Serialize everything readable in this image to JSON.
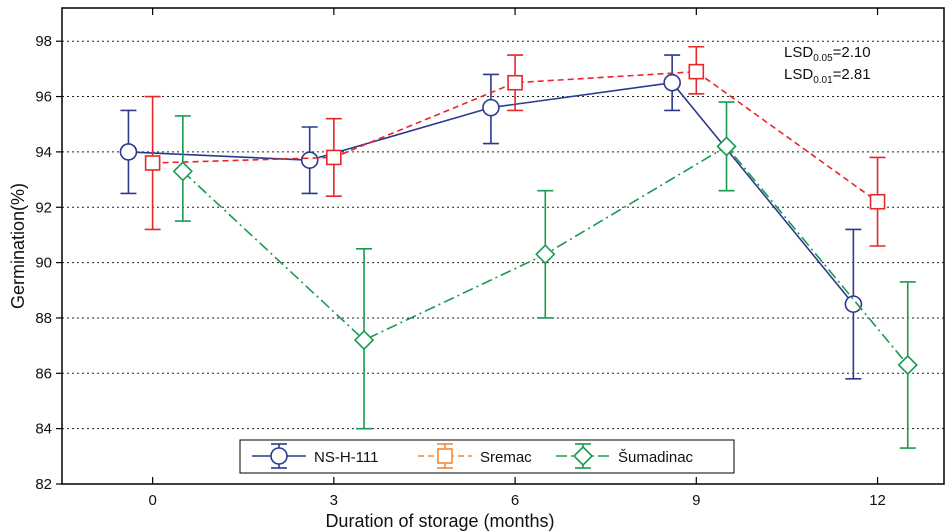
{
  "chart_data": {
    "type": "line",
    "xlabel": "Duration of storage (months)",
    "ylabel": "Germination(%)",
    "xlim": [
      -1.5,
      13.1
    ],
    "ylim": [
      82,
      99.2
    ],
    "x_ticks": [
      "0",
      "3",
      "6",
      "9",
      "12"
    ],
    "y_ticks": [
      "82",
      "84",
      "86",
      "88",
      "90",
      "92",
      "94",
      "96",
      "98"
    ],
    "grid": "horizontal dotted",
    "legend_position": "bottom-center",
    "series": [
      {
        "name": "NS-H-111",
        "color": "#2b3a8f",
        "line_style": "solid",
        "marker": "circle",
        "x": [
          -0.4,
          2.6,
          5.6,
          8.6,
          11.6
        ],
        "y": [
          94.0,
          93.7,
          95.6,
          96.5,
          88.5
        ],
        "err_low": [
          92.5,
          92.5,
          94.3,
          95.5,
          85.8
        ],
        "err_high": [
          95.5,
          94.9,
          96.8,
          97.5,
          91.2
        ]
      },
      {
        "name": "Sremac",
        "color": "#e8262b",
        "legend_color": "#f08a3c",
        "line_style": "dashed",
        "marker": "square",
        "x": [
          0.0,
          3.0,
          6.0,
          9.0,
          12.0
        ],
        "y": [
          93.6,
          93.8,
          96.5,
          96.9,
          92.2
        ],
        "err_low": [
          91.2,
          92.4,
          95.5,
          96.1,
          90.6
        ],
        "err_high": [
          96.0,
          95.2,
          97.5,
          97.8,
          93.8
        ]
      },
      {
        "name": "Šumadinac",
        "color": "#1a9a50",
        "line_style": "dash-dot",
        "marker": "diamond",
        "x": [
          0.5,
          3.5,
          6.5,
          9.5,
          12.5
        ],
        "y": [
          93.3,
          87.2,
          90.3,
          94.2,
          86.3
        ],
        "err_low": [
          91.5,
          84.0,
          88.0,
          92.6,
          83.3
        ],
        "err_high": [
          95.3,
          90.5,
          92.6,
          95.8,
          89.3
        ]
      }
    ],
    "annotations": [
      {
        "prefix": "LSD",
        "sub": "0.05",
        "text": "=2.10"
      },
      {
        "prefix": "LSD",
        "sub": "0.01",
        "text": "=2.81"
      }
    ]
  }
}
